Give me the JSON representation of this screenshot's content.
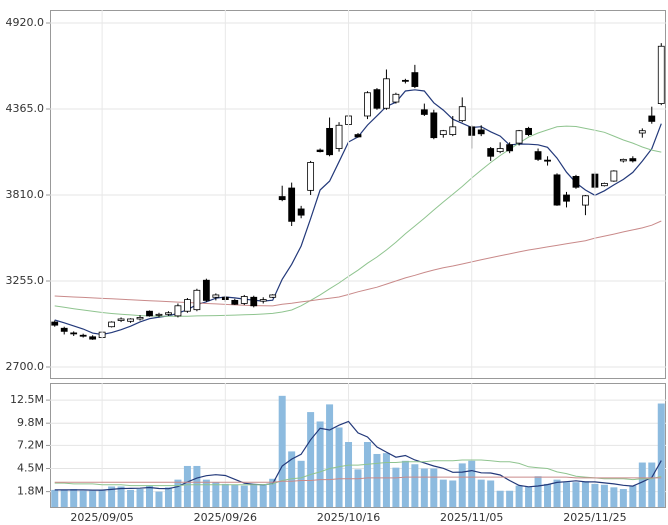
{
  "chart_data": [
    {
      "type": "candlestick",
      "ylim": [
        2629,
        5004
      ],
      "yticks": [
        {
          "value": 2700,
          "label": "2700.0"
        },
        {
          "value": 3255,
          "label": "3255.0"
        },
        {
          "value": 3810,
          "label": "3810.0"
        },
        {
          "value": 4365,
          "label": "4365.0"
        },
        {
          "value": 4920,
          "label": "4920.0"
        }
      ],
      "grid": true,
      "up_color": "#ffffff",
      "down_color": "#000000",
      "open": [
        2990,
        2950,
        2920,
        2905,
        2895,
        2890,
        2960,
        3000,
        2995,
        3010,
        3060,
        3035,
        3040,
        3030,
        3060,
        3070,
        3260,
        3150,
        3150,
        3130,
        3110,
        3150,
        3125,
        3150,
        3800,
        3855,
        3720,
        3840,
        4100,
        4240,
        4110,
        4265,
        4200,
        4320,
        4490,
        4370,
        4410,
        4550,
        4600,
        4360,
        4340,
        4200,
        4200,
        4290,
        4250,
        4230,
        4110,
        4090,
        4135,
        4145,
        4240,
        4090,
        4035,
        3940,
        3810,
        3930,
        3745,
        3945,
        3870,
        3900,
        4030,
        4045,
        4210,
        4320,
        4400
      ],
      "high": [
        3000,
        2960,
        2930,
        2915,
        2905,
        2930,
        2995,
        3020,
        3015,
        3035,
        3065,
        3050,
        3060,
        3110,
        3145,
        3205,
        3270,
        3175,
        3160,
        3140,
        3165,
        3160,
        3150,
        3170,
        3870,
        3890,
        3740,
        4030,
        4110,
        4310,
        4280,
        4330,
        4210,
        4480,
        4500,
        4620,
        4470,
        4560,
        4650,
        4400,
        4360,
        4230,
        4320,
        4440,
        4260,
        4260,
        4120,
        4150,
        4150,
        4230,
        4250,
        4110,
        4060,
        3950,
        3830,
        3940,
        3810,
        3960,
        3890,
        3970,
        4045,
        4060,
        4240,
        4380,
        4790
      ],
      "low": [
        2960,
        2910,
        2900,
        2890,
        2875,
        2885,
        2955,
        2990,
        2985,
        3000,
        3025,
        3020,
        3030,
        3020,
        3050,
        3060,
        3120,
        3130,
        3120,
        3100,
        3100,
        3085,
        3110,
        3145,
        3770,
        3610,
        3660,
        3810,
        4085,
        4060,
        4090,
        4250,
        4180,
        4300,
        4360,
        4360,
        4400,
        4530,
        4500,
        4320,
        4170,
        4180,
        4190,
        4280,
        4110,
        4190,
        4030,
        4080,
        4080,
        4130,
        4190,
        4030,
        4000,
        3740,
        3730,
        3850,
        3680,
        3850,
        3865,
        3895,
        4020,
        4020,
        4180,
        4270,
        4390
      ],
      "close": [
        2970,
        2930,
        2915,
        2900,
        2880,
        2925,
        2990,
        3010,
        3010,
        3020,
        3030,
        3040,
        3050,
        3095,
        3135,
        3195,
        3130,
        3165,
        3135,
        3105,
        3155,
        3095,
        3135,
        3165,
        3780,
        3640,
        3680,
        4020,
        4090,
        4070,
        4260,
        4320,
        4185,
        4470,
        4370,
        4560,
        4460,
        4545,
        4510,
        4330,
        4180,
        4225,
        4250,
        4380,
        4195,
        4205,
        4060,
        4110,
        4095,
        4225,
        4200,
        4040,
        4030,
        3745,
        3770,
        3860,
        3805,
        3860,
        3885,
        3965,
        4040,
        4030,
        4225,
        4285,
        4770
      ],
      "series": [
        {
          "color": "#23397a",
          "values": [
            3003,
            2985,
            2965,
            2945,
            2919,
            2910,
            2922,
            2941,
            2963,
            2991,
            3012,
            3022,
            3030,
            3047,
            3070,
            3103,
            3121,
            3144,
            3152,
            3146,
            3138,
            3131,
            3125,
            3131,
            3266,
            3363,
            3480,
            3657,
            3842,
            3900,
            4024,
            4152,
            4185,
            4261,
            4321,
            4381,
            4409,
            4481,
            4489,
            4481,
            4405,
            4358,
            4299,
            4273,
            4246,
            4251,
            4218,
            4190,
            4133,
            4139,
            4138,
            4134,
            4118,
            4048,
            3957,
            3889,
            3842,
            3808,
            3837,
            3875,
            3911,
            3956,
            4029,
            4109,
            4270
          ]
        },
        {
          "color": "#8fc48f",
          "values": [
            3094,
            3085,
            3076,
            3068,
            3060,
            3052,
            3045,
            3040,
            3036,
            3032,
            3030,
            3028,
            3027,
            3027,
            3028,
            3030,
            3031,
            3032,
            3033,
            3035,
            3037,
            3039,
            3042,
            3046,
            3055,
            3068,
            3095,
            3130,
            3165,
            3205,
            3242,
            3285,
            3325,
            3370,
            3410,
            3455,
            3505,
            3560,
            3610,
            3660,
            3713,
            3765,
            3815,
            3865,
            3920,
            3971,
            4020,
            4065,
            4105,
            4145,
            4184,
            4210,
            4230,
            4250,
            4255,
            4252,
            4240,
            4228,
            4215,
            4190,
            4165,
            4145,
            4120,
            4100,
            4087
          ]
        },
        {
          "color": "#c98a8a",
          "values": [
            3158,
            3155,
            3152,
            3149,
            3146,
            3143,
            3140,
            3137,
            3134,
            3131,
            3128,
            3125,
            3122,
            3119,
            3116,
            3113,
            3110,
            3107,
            3104,
            3101,
            3098,
            3096,
            3095,
            3094,
            3105,
            3112,
            3120,
            3128,
            3136,
            3144,
            3152,
            3168,
            3185,
            3200,
            3215,
            3235,
            3255,
            3275,
            3292,
            3310,
            3326,
            3340,
            3352,
            3365,
            3378,
            3392,
            3405,
            3418,
            3430,
            3443,
            3455,
            3465,
            3475,
            3485,
            3495,
            3505,
            3515,
            3532,
            3545,
            3558,
            3572,
            3585,
            3598,
            3615,
            3642
          ]
        }
      ]
    },
    {
      "type": "bar",
      "categories": [
        null,
        null,
        null,
        null,
        null,
        "2025/09/05",
        null,
        null,
        null,
        null,
        null,
        null,
        null,
        null,
        null,
        null,
        null,
        null,
        "2025/09/26",
        null,
        null,
        null,
        null,
        null,
        null,
        null,
        null,
        null,
        null,
        null,
        null,
        "2025/10/16",
        null,
        null,
        null,
        null,
        null,
        null,
        null,
        null,
        null,
        null,
        null,
        null,
        "2025/11/05",
        null,
        null,
        null,
        null,
        null,
        null,
        null,
        null,
        null,
        null,
        null,
        null,
        "2025/11/25",
        null,
        null,
        null,
        null,
        null,
        null,
        null
      ],
      "ylim": [
        0,
        14.5
      ],
      "yticks": [
        {
          "value": 1.8,
          "label": "1.8M"
        },
        {
          "value": 4.5,
          "label": "4.5M"
        },
        {
          "value": 7.2,
          "label": "7.2M"
        },
        {
          "value": 9.8,
          "label": "9.8M"
        },
        {
          "value": 12.5,
          "label": "12.5M"
        }
      ],
      "grid": true,
      "color": "#8dbbdf",
      "values": [
        2.0,
        2.0,
        2.1,
        1.9,
        1.9,
        2.0,
        2.4,
        2.4,
        2.0,
        2.1,
        2.5,
        1.8,
        2.3,
        3.2,
        4.8,
        4.8,
        3.2,
        2.9,
        2.7,
        2.6,
        2.5,
        2.6,
        2.6,
        3.3,
        13.0,
        6.5,
        5.4,
        11.1,
        10.0,
        12.0,
        9.3,
        7.6,
        4.4,
        7.6,
        6.2,
        6.3,
        4.6,
        5.4,
        5.0,
        4.5,
        4.5,
        3.2,
        3.1,
        5.1,
        5.4,
        3.2,
        3.1,
        1.9,
        1.9,
        2.5,
        2.4,
        3.6,
        2.7,
        3.2,
        2.9,
        2.9,
        3.0,
        2.7,
        2.6,
        2.3,
        2.1,
        2.5,
        5.2,
        5.2,
        12.1
      ],
      "series": [
        {
          "color": "#23397a",
          "values": [
            2.0,
            2.0,
            2.0,
            2.0,
            1.98,
            1.98,
            2.06,
            2.16,
            2.18,
            2.2,
            2.28,
            2.16,
            2.14,
            2.38,
            2.92,
            3.38,
            3.66,
            3.78,
            3.68,
            3.24,
            2.78,
            2.66,
            2.6,
            2.72,
            4.8,
            5.6,
            6.16,
            7.86,
            9.2,
            9.0,
            9.56,
            10.0,
            8.66,
            8.18,
            7.02,
            6.42,
            5.82,
            6.02,
            5.5,
            5.16,
            4.8,
            4.52,
            4.06,
            4.08,
            4.26,
            4.0,
            3.98,
            3.74,
            3.1,
            2.52,
            2.36,
            2.46,
            2.62,
            2.88,
            2.96,
            3.06,
            2.94,
            2.94,
            2.82,
            2.7,
            2.54,
            2.44,
            2.94,
            3.46,
            5.42
          ]
        },
        {
          "color": "#8fc48f",
          "values": [
            2.8,
            2.8,
            2.7,
            2.7,
            2.7,
            2.6,
            2.6,
            2.6,
            2.5,
            2.5,
            2.5,
            2.5,
            2.5,
            2.5,
            2.6,
            2.6,
            2.6,
            2.6,
            2.6,
            2.6,
            2.6,
            2.6,
            2.6,
            2.7,
            3.1,
            3.3,
            3.4,
            3.8,
            4.1,
            4.5,
            4.7,
            4.9,
            4.9,
            5.0,
            5.1,
            5.2,
            5.2,
            5.3,
            5.3,
            5.3,
            5.4,
            5.4,
            5.4,
            5.5,
            5.5,
            5.5,
            5.4,
            5.3,
            5.3,
            5.1,
            4.7,
            4.6,
            4.5,
            4.1,
            3.9,
            3.6,
            3.5,
            3.4,
            3.3,
            3.3,
            3.3,
            3.2,
            3.3,
            3.3,
            3.6
          ]
        },
        {
          "color": "#c98a8a",
          "values": [
            2.9,
            2.9,
            2.9,
            2.9,
            2.9,
            2.9,
            2.9,
            2.9,
            2.9,
            2.9,
            2.9,
            2.9,
            2.9,
            2.9,
            2.9,
            2.9,
            2.9,
            2.9,
            2.9,
            2.9,
            2.9,
            2.9,
            2.9,
            2.9,
            3.0,
            3.0,
            3.1,
            3.1,
            3.2,
            3.2,
            3.3,
            3.3,
            3.3,
            3.4,
            3.4,
            3.4,
            3.4,
            3.5,
            3.5,
            3.5,
            3.5,
            3.5,
            3.5,
            3.5,
            3.5,
            3.5,
            3.5,
            3.5,
            3.5,
            3.5,
            3.5,
            3.5,
            3.5,
            3.5,
            3.5,
            3.4,
            3.4,
            3.4,
            3.4,
            3.4,
            3.4,
            3.4,
            3.4,
            3.4,
            3.4
          ]
        }
      ]
    }
  ]
}
